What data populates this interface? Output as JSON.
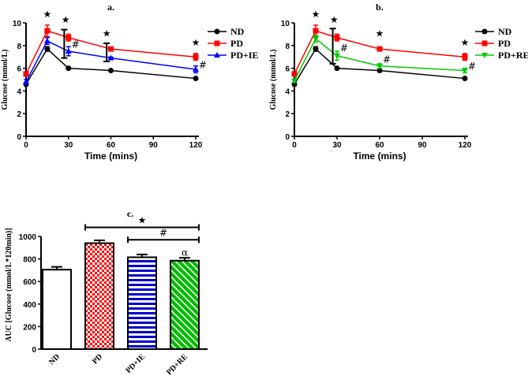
{
  "chart_data": [
    {
      "panel": "a.",
      "type": "line",
      "xlabel": "Time (mins)",
      "ylabel": "Glucose (mmol/L)",
      "x": [
        0,
        15,
        30,
        60,
        120
      ],
      "xticks": [
        0,
        30,
        60,
        90,
        120
      ],
      "yticks": [
        0,
        2,
        4,
        6,
        8,
        10
      ],
      "xlim": [
        0,
        120
      ],
      "ylim": [
        0,
        10
      ],
      "legend": "right",
      "series": [
        {
          "name": "ND",
          "color": "#000000",
          "marker": "circle",
          "values": [
            4.6,
            7.7,
            6.0,
            5.8,
            5.1
          ],
          "errors": [
            0.15,
            0.2,
            0.05,
            0.05,
            0.05
          ]
        },
        {
          "name": "PD",
          "color": "#ff0000",
          "marker": "square",
          "values": [
            5.5,
            9.3,
            8.7,
            7.7,
            7.0
          ],
          "errors": [
            0.1,
            0.5,
            0.3,
            0.1,
            0.3
          ]
        },
        {
          "name": "PD+IE",
          "color": "#0000ff",
          "marker": "triangle-up",
          "values": [
            4.8,
            8.4,
            7.5,
            6.9,
            5.9
          ],
          "errors": [
            0.2,
            0.3,
            0.4,
            0.1,
            0.3
          ]
        }
      ],
      "brackets": [
        {
          "x": 27,
          "y": [
            6.9,
            9.4
          ]
        },
        {
          "x": 57,
          "y": [
            6.6,
            8.2
          ]
        }
      ],
      "annotations": [
        {
          "text": "★",
          "x": 15,
          "y": 10.5
        },
        {
          "text": "★",
          "x": 28,
          "y": 10.0
        },
        {
          "text": "★",
          "x": 57,
          "y": 8.8
        },
        {
          "text": "★",
          "x": 120,
          "y": 8.0
        },
        {
          "text": "#",
          "x": 35,
          "y": 7.8
        },
        {
          "text": "#",
          "x": 125,
          "y": 6.0
        }
      ]
    },
    {
      "panel": "b.",
      "type": "line",
      "xlabel": "Time (mins)",
      "ylabel": "Glucose (mmol/L)",
      "x": [
        0,
        15,
        30,
        60,
        120
      ],
      "xticks": [
        0,
        30,
        60,
        90,
        120
      ],
      "yticks": [
        0,
        2,
        4,
        6,
        8,
        10
      ],
      "xlim": [
        0,
        120
      ],
      "ylim": [
        0,
        10
      ],
      "legend": "right",
      "series": [
        {
          "name": "ND",
          "color": "#000000",
          "marker": "circle",
          "values": [
            4.6,
            7.7,
            6.0,
            5.8,
            5.1
          ],
          "errors": [
            0.15,
            0.2,
            0.05,
            0.05,
            0.05
          ]
        },
        {
          "name": "PD",
          "color": "#ff0000",
          "marker": "square",
          "values": [
            5.5,
            9.3,
            8.7,
            7.7,
            7.0
          ],
          "errors": [
            0.1,
            0.5,
            0.3,
            0.1,
            0.3
          ]
        },
        {
          "name": "PD+RE",
          "color": "#00cc00",
          "marker": "triangle-down",
          "values": [
            4.9,
            8.6,
            7.1,
            6.2,
            5.8
          ],
          "errors": [
            0.15,
            0.3,
            0.4,
            0.2,
            0.2
          ]
        }
      ],
      "brackets": [
        {
          "x": 27,
          "y": [
            6.4,
            9.5
          ]
        }
      ],
      "annotations": [
        {
          "text": "★",
          "x": 15,
          "y": 10.5
        },
        {
          "text": "★",
          "x": 28,
          "y": 10.0
        },
        {
          "text": "★",
          "x": 60,
          "y": 8.8
        },
        {
          "text": "★",
          "x": 120,
          "y": 8.0
        },
        {
          "text": "#",
          "x": 35,
          "y": 7.5
        },
        {
          "text": "#",
          "x": 65,
          "y": 6.5
        },
        {
          "text": "#",
          "x": 125,
          "y": 5.9
        }
      ]
    },
    {
      "panel": "c.",
      "type": "bar",
      "ylabel": "AUC [Glucose (mmol/L*120min)]",
      "categories": [
        "ND",
        "PD",
        "PD+IE",
        "PD+RE"
      ],
      "values": [
        705,
        940,
        815,
        785
      ],
      "errors": [
        25,
        25,
        25,
        25
      ],
      "fills": [
        "white",
        "checker-red",
        "stripes-blue",
        "diagonal-green"
      ],
      "colors": [
        "#ffffff",
        "#ff0000",
        "#0000cc",
        "#00bb00"
      ],
      "yticks": [
        0,
        200,
        400,
        600,
        800,
        1000
      ],
      "ylim": [
        0,
        1000
      ],
      "significance": [
        {
          "text": "★",
          "from": 1,
          "to": 3,
          "y": 1080
        },
        {
          "text": "#",
          "from": 2,
          "to": 3,
          "y": 970
        },
        {
          "text": "α",
          "from": 3,
          "to": 3,
          "y": 830
        }
      ]
    }
  ]
}
